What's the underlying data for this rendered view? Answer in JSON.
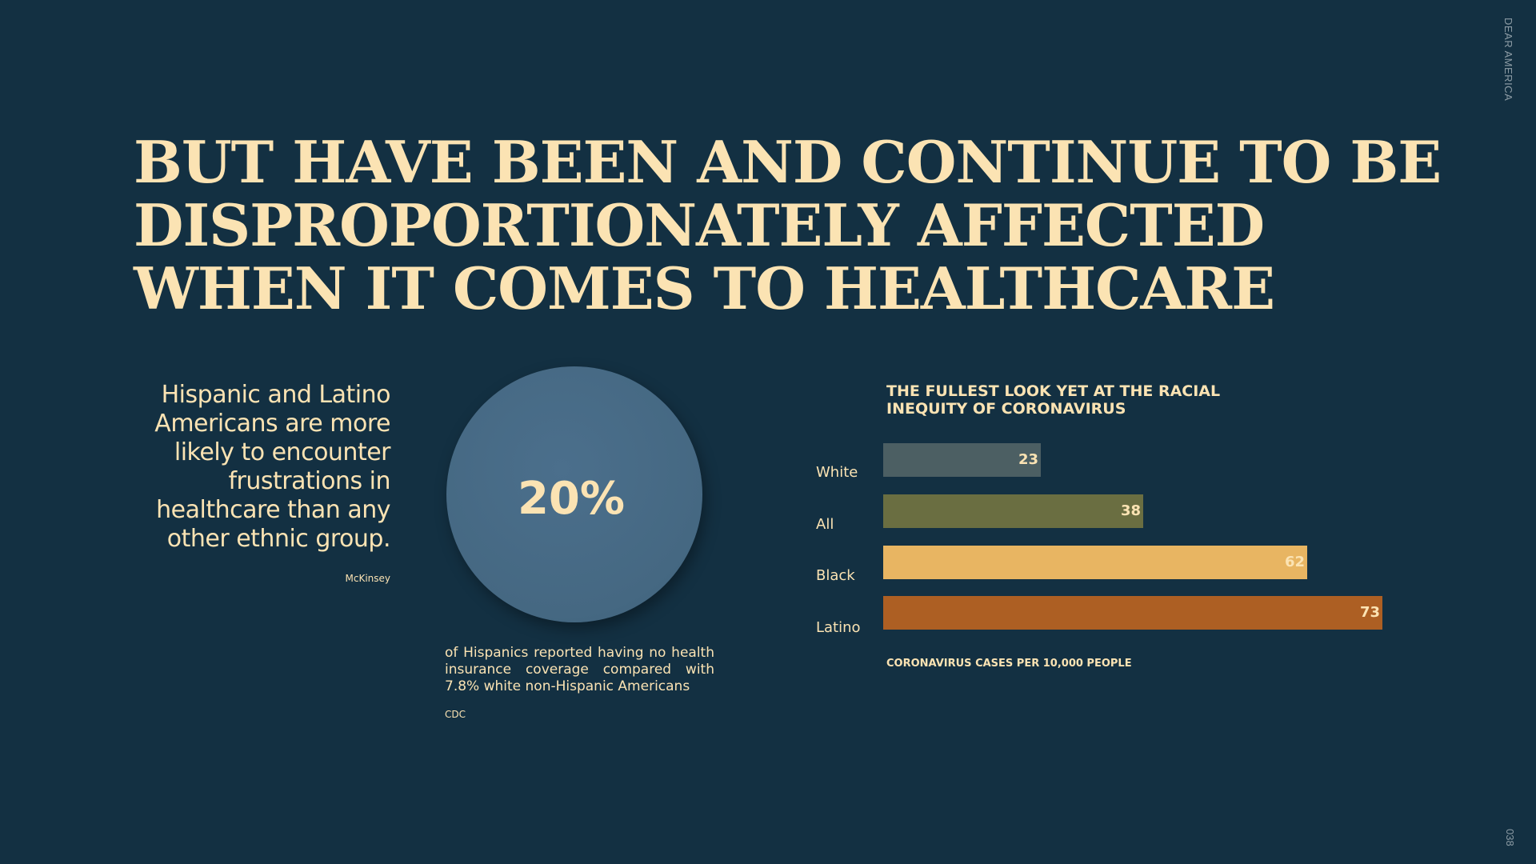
{
  "brand": "DEAR AMERICA",
  "page_number": "038",
  "headline": {
    "lines": [
      "BUT HAVE BEEN AND CONTINUE TO BE",
      "DISPROPORTIONATELY AFFECTED",
      "WHEN IT COMES TO HEALTHCARE"
    ]
  },
  "left": {
    "statement": "Hispanic and Latino Americans are more likely to encounter frustrations in healthcare than any other ethnic group.",
    "source": "McKinsey"
  },
  "stat": {
    "value": "20%",
    "caption": "of Hispanics reported having no health insurance coverage compared with 7.8% white non-Hispanic Americans",
    "source": "CDC",
    "circle_color": "#456882"
  },
  "chart_data": {
    "type": "bar",
    "orientation": "horizontal",
    "title": "THE FULLEST LOOK YET AT THE RACIAL INEQUITY OF CORONAVIRUS",
    "xlabel": "CORONAVIRUS CASES PER 10,000 PEOPLE",
    "ylabel": "",
    "categories": [
      "White",
      "All",
      "Black",
      "Latino"
    ],
    "values": [
      23,
      38,
      62,
      73
    ],
    "colors": [
      "#4c5f63",
      "#6a6e41",
      "#e8b562",
      "#ad5f23"
    ],
    "xlim": [
      0,
      73
    ],
    "grid": false,
    "legend": "none",
    "data_labels": true
  },
  "colors": {
    "background": "#133042",
    "text": "#fbe3b3",
    "muted": "#8d9ca5"
  }
}
